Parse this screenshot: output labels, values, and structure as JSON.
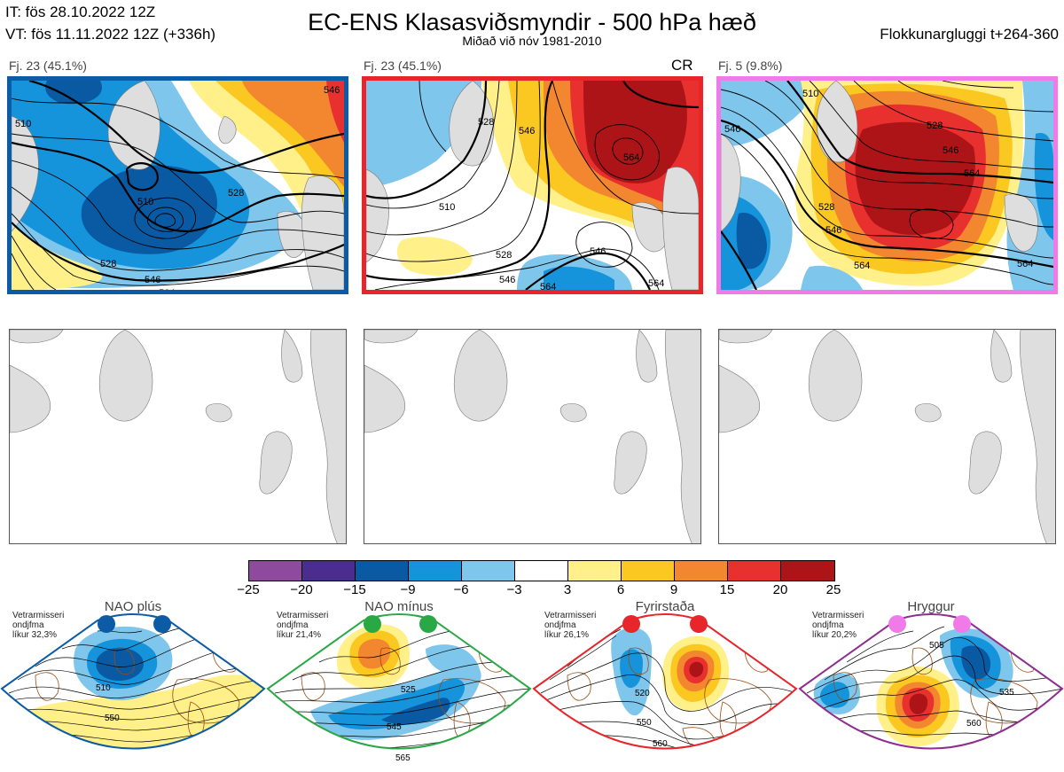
{
  "header": {
    "init_time": "IT: fös 28.10.2022 12Z",
    "valid_time": "VT: fös 11.11.2022 12Z  (+336h)",
    "title": "EC-ENS Klasasviðsmyndir - 500 hPa hæð",
    "subtitle": "Miðað við nóv 1981-2010",
    "window": "Flokkunargluggi t+264-360"
  },
  "clusters": [
    {
      "label": "Fj. 23 (45.1%)",
      "frame_color": "#0b5ba6",
      "contours": [
        "510",
        "510",
        "528",
        "546",
        "528",
        "546",
        "564"
      ]
    },
    {
      "label": "Fj. 23 (45.1%)",
      "frame_color": "#e8252a",
      "marker": "CR",
      "contours": [
        "528",
        "546",
        "510",
        "528",
        "564",
        "546",
        "564",
        "546",
        "564"
      ]
    },
    {
      "label": "Fj. 5 (9.8%)",
      "frame_color": "#f07ae8",
      "contours": [
        "510",
        "546",
        "528",
        "546",
        "564",
        "528",
        "546",
        "564",
        "564"
      ]
    }
  ],
  "colorbar": {
    "colors": [
      "#8e4a9d",
      "#4a2d8f",
      "#0a5aa3",
      "#1594dc",
      "#7ec6ec",
      "#ffffff",
      "#fff08a",
      "#fbc721",
      "#f2872f",
      "#e8302f",
      "#ad1417"
    ],
    "ticks": [
      "−25",
      "−20",
      "−15",
      "−9",
      "−6",
      "−3",
      "3",
      "6",
      "9",
      "15",
      "20",
      "25"
    ]
  },
  "regimes": [
    {
      "name": "NAO plús",
      "note": [
        "Vetrarmisseri",
        "ondjfma",
        "líkur 32,3%"
      ],
      "color": "#0b5ba6",
      "contours": [
        "510",
        "550"
      ]
    },
    {
      "name": "NAO mínus",
      "note": [
        "Vetrarmisseri",
        "ondjfma",
        "líkur 21,4%"
      ],
      "color": "#2aa845",
      "contours": [
        "525",
        "545",
        "565"
      ]
    },
    {
      "name": "Fyrirstaða",
      "note": [
        "Vetrarmisseri",
        "ondjfma",
        "líkur 26,1%"
      ],
      "color": "#e8252a",
      "contours": [
        "520",
        "550",
        "560"
      ]
    },
    {
      "name": "Hryggur",
      "note": [
        "Vetrarmisseri",
        "ondjfma",
        "líkur 20,2%"
      ],
      "color": "#f07ae8",
      "contours": [
        "505",
        "535",
        "560"
      ]
    }
  ]
}
